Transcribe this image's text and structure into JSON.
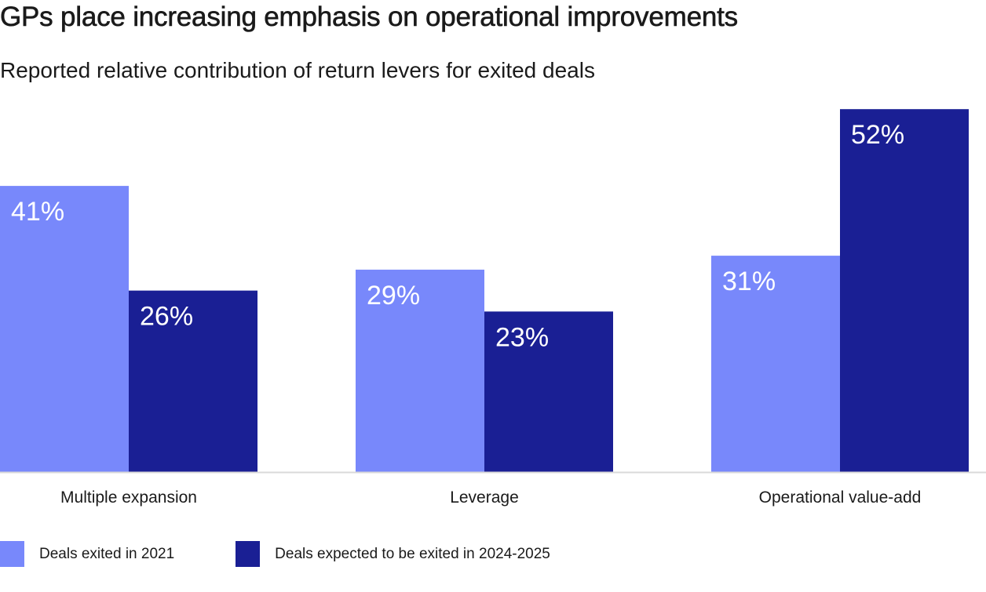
{
  "chart_data": {
    "type": "bar",
    "title": "GPs place increasing emphasis on operational improvements",
    "subtitle": "Reported relative contribution of return levers for exited deals",
    "categories": [
      "Multiple expansion",
      "Leverage",
      "Operational value-add"
    ],
    "series": [
      {
        "name": "Deals exited in 2021",
        "color": "#7888FB",
        "values": [
          41,
          29,
          31
        ],
        "labels": [
          "41%",
          "29%",
          "31%"
        ]
      },
      {
        "name": "Deals expected to be exited in 2024-2025",
        "color": "#1A1F94",
        "values": [
          26,
          23,
          52
        ],
        "labels": [
          "26%",
          "23%",
          "52%"
        ]
      }
    ],
    "ylim": [
      0,
      60
    ],
    "grid": false,
    "legend_position": "bottom-left",
    "xlabel": "",
    "ylabel": ""
  }
}
